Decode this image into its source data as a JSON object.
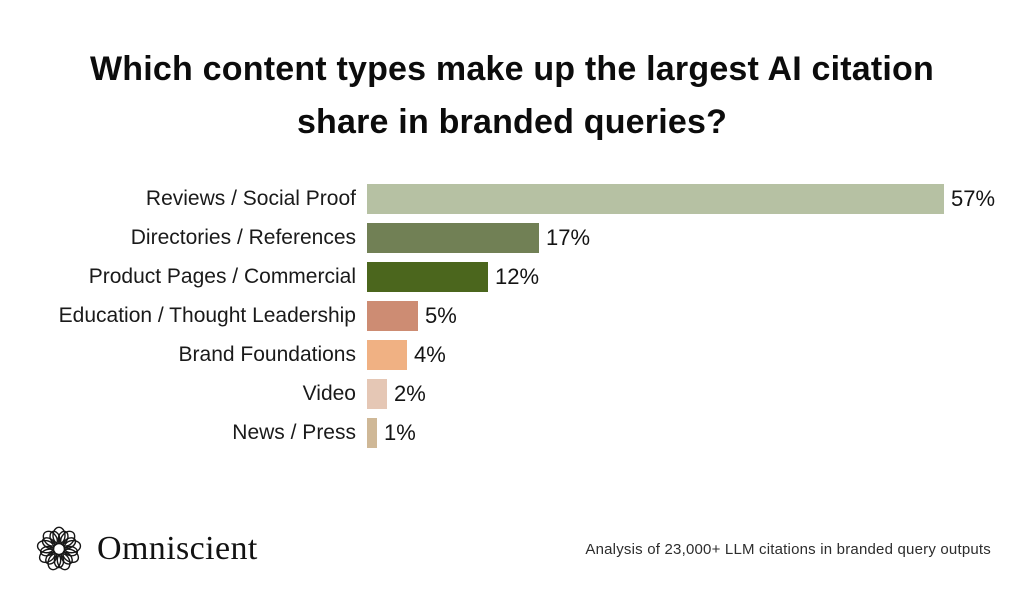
{
  "chart_data": {
    "type": "bar",
    "orientation": "horizontal",
    "title": "Which content types make up the largest AI citation share in branded queries?",
    "title_lines": [
      "Which content types make up the largest AI citation",
      "share in branded queries?"
    ],
    "categories": [
      "Reviews / Social Proof",
      "Directories / References",
      "Product Pages / Commercial",
      "Education / Thought Leadership",
      "Brand Foundations",
      "Video",
      "News / Press"
    ],
    "values": [
      57,
      17,
      12,
      5,
      4,
      2,
      1
    ],
    "value_labels": [
      "57%",
      "17%",
      "12%",
      "5%",
      "4%",
      "2%",
      "1%"
    ],
    "colors": [
      "#b6c1a3",
      "#718055",
      "#4b661d",
      "#cd8c73",
      "#f0b183",
      "#e5c7b5",
      "#cfb897"
    ],
    "textured": [
      false,
      false,
      false,
      false,
      true,
      true,
      true
    ],
    "xlabel": "",
    "ylabel": "",
    "xlim": [
      0,
      57
    ],
    "grid": false,
    "legend": "none",
    "value_label_position": "right-of-bar"
  },
  "footer": {
    "brand": "Omniscient",
    "logo": "omniscient-knot-ring-logo",
    "note": "Analysis of 23,000+ LLM citations in branded query outputs"
  }
}
